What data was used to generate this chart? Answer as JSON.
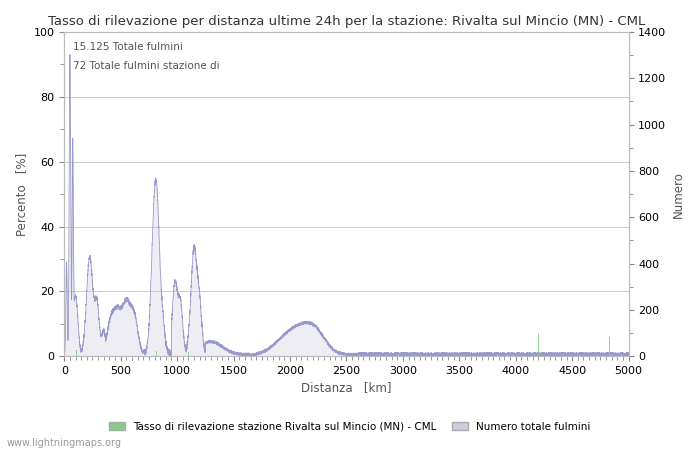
{
  "title": "Tasso di rilevazione per distanza ultime 24h per la stazione: Rivalta sul Mincio (MN) - CML",
  "xlabel": "Distanza   [km]",
  "ylabel_left": "Percento   [%]",
  "ylabel_right": "Numero",
  "annotation1": "15.125 Totale fulmini",
  "annotation2": "72 Totale fulmini stazione di",
  "legend1": "Tasso di rilevazione stazione Rivalta sul Mincio (MN) - CML",
  "legend2": "Numero totale fulmini",
  "watermark": "www.lightningmaps.org",
  "xlim": [
    0,
    5000
  ],
  "ylim_left": [
    0,
    100
  ],
  "ylim_right": [
    0,
    1400
  ],
  "bg_color": "#ffffff",
  "plot_bg_color": "#ffffff",
  "grid_color": "#cccccc",
  "line_color": "#9999cc",
  "fill_color": "#ccccdd",
  "bar_color": "#88cc88",
  "title_fontsize": 9.5,
  "label_fontsize": 8.5,
  "tick_fontsize": 8
}
